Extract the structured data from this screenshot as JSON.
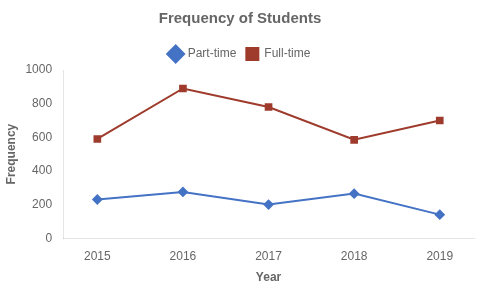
{
  "chart_data": {
    "type": "line",
    "title": "Frequency of Students",
    "xlabel": "Year",
    "ylabel": "Frequency",
    "x": [
      2015,
      2016,
      2017,
      2018,
      2019
    ],
    "series": [
      {
        "name": "Part-time",
        "color": "#4472C4",
        "marker": "diamond",
        "values": [
          230,
          275,
          200,
          265,
          140
        ]
      },
      {
        "name": "Full-time",
        "color": "#9E3B2C",
        "marker": "square",
        "values": [
          590,
          890,
          780,
          585,
          700
        ]
      }
    ],
    "xlim": [
      2014.6,
      2019.4
    ],
    "xticks": [
      2015,
      2016,
      2017,
      2018,
      2019
    ],
    "ylim": [
      0,
      1000
    ],
    "yticks": [
      0,
      200,
      400,
      600,
      800,
      1000
    ],
    "grid": false,
    "legend": "top"
  }
}
